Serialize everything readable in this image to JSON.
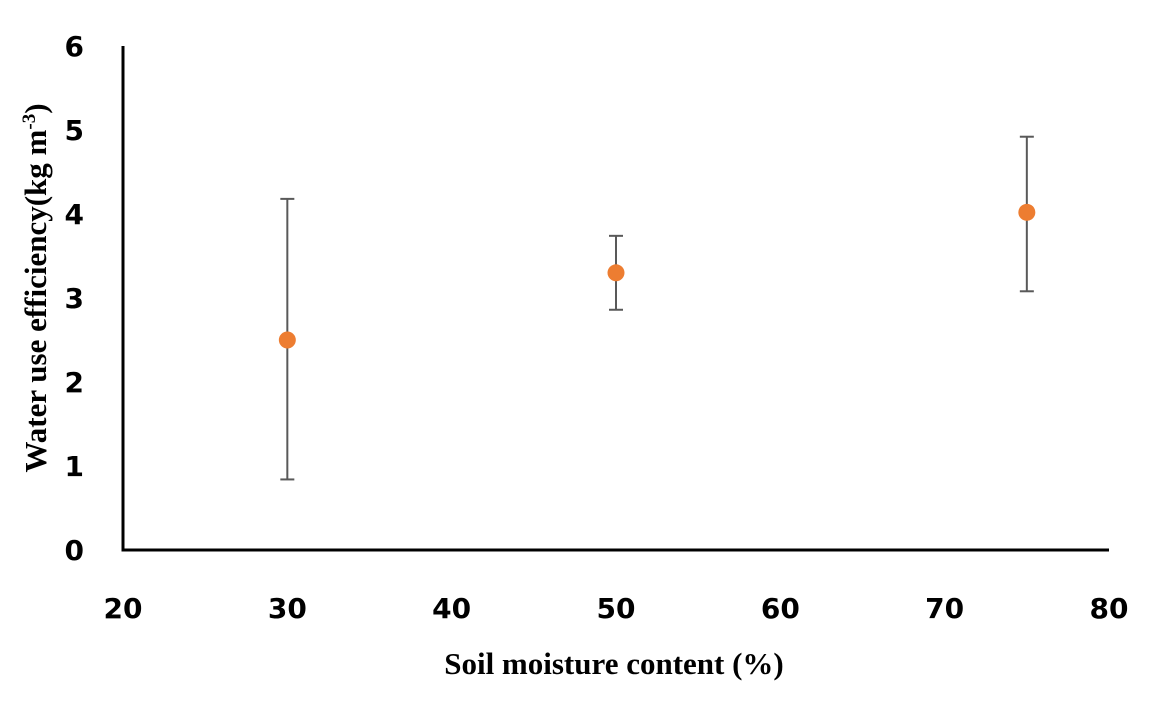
{
  "chart_data": {
    "type": "scatter",
    "title": "",
    "xlabel": "Soil moisture content (%)",
    "ylabel": {
      "main": "Water use efficiency(kg m",
      "superscript": "-3",
      "closing": ")"
    },
    "xlim": [
      20,
      80
    ],
    "ylim": [
      0,
      6
    ],
    "x_ticks": [
      "20",
      "30",
      "40",
      "50",
      "60",
      "70",
      "80"
    ],
    "y_ticks": [
      "0",
      "1",
      "2",
      "3",
      "4",
      "5",
      "6"
    ],
    "grid": false,
    "legend": "none",
    "marker_color": "#ED7D31",
    "errorbar_color": "#595959",
    "axis_color": "#000000",
    "series": [
      {
        "points": [
          {
            "x": 30,
            "y": 2.5,
            "err_low": 0.84,
            "err_high": 4.18
          },
          {
            "x": 50,
            "y": 3.3,
            "err_low": 2.86,
            "err_high": 3.74
          },
          {
            "x": 75,
            "y": 4.02,
            "err_low": 3.08,
            "err_high": 4.92
          }
        ]
      }
    ]
  }
}
